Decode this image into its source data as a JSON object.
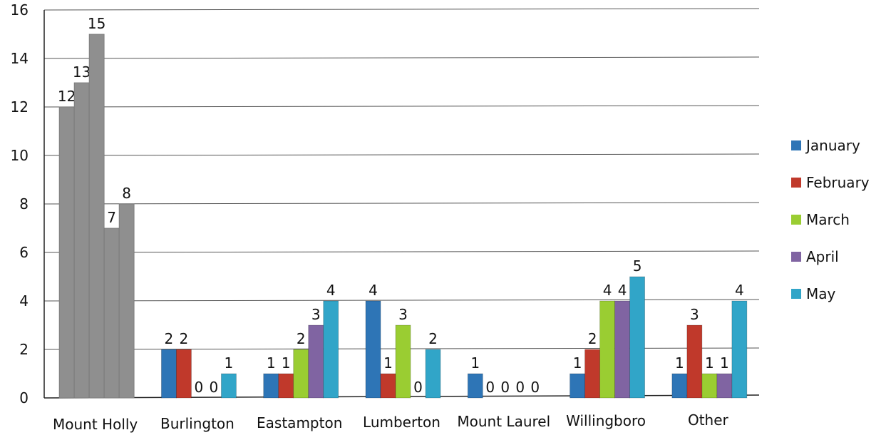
{
  "chart_data": {
    "type": "bar",
    "categories": [
      "Mount Holly",
      "Burlington",
      "Eastampton",
      "Lumberton",
      "Mount Laurel",
      "Willingboro",
      "Other"
    ],
    "series": [
      {
        "name": "January",
        "color": "#2e75b6",
        "values": [
          12,
          2,
          1,
          4,
          1,
          1,
          1
        ]
      },
      {
        "name": "February",
        "color": "#c0392b",
        "values": [
          13,
          2,
          1,
          1,
          0,
          2,
          3
        ]
      },
      {
        "name": "March",
        "color": "#9acd32",
        "values": [
          15,
          0,
          2,
          3,
          0,
          4,
          1
        ]
      },
      {
        "name": "April",
        "color": "#8064a2",
        "values": [
          7,
          0,
          3,
          0,
          0,
          4,
          1
        ]
      },
      {
        "name": "May",
        "color": "#31a5c8",
        "values": [
          8,
          1,
          4,
          2,
          0,
          5,
          4
        ]
      }
    ],
    "grayscale_category": "Mount Holly",
    "grayscale_color": "#8f8f8f",
    "ylim": [
      0,
      16
    ],
    "yticks": [
      0,
      2,
      4,
      6,
      8,
      10,
      12,
      14,
      16
    ],
    "grid": true,
    "legend_position": "right",
    "data_labels": true
  }
}
